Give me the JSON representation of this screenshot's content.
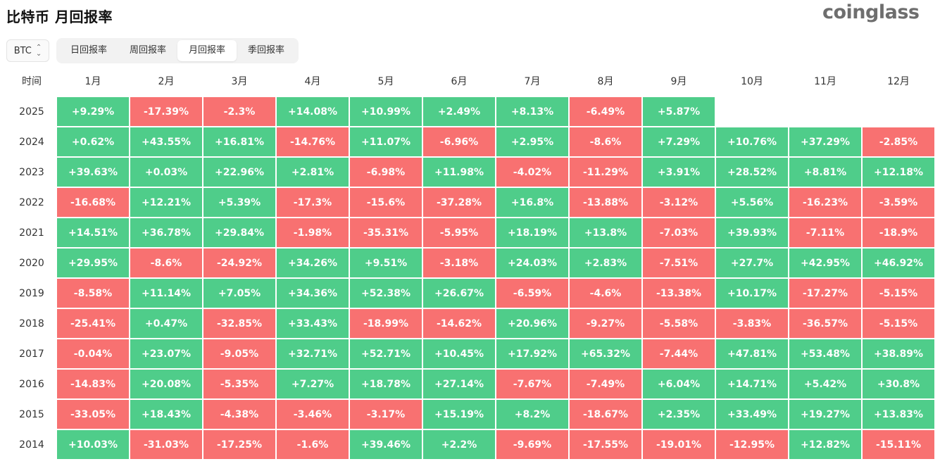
{
  "title": "比特币 月回报率",
  "brand": "coinglass",
  "asset_select": {
    "value": "BTC",
    "icon": "chevron-up-down-icon"
  },
  "tabs": [
    {
      "label": "日回报率",
      "active": false
    },
    {
      "label": "周回报率",
      "active": false
    },
    {
      "label": "月回报率",
      "active": true
    },
    {
      "label": "季回报率",
      "active": false
    }
  ],
  "colors": {
    "positive": "#4fcd8a",
    "negative": "#f87171"
  },
  "table": {
    "year_header": "时间",
    "months": [
      "1月",
      "2月",
      "3月",
      "4月",
      "5月",
      "6月",
      "7月",
      "8月",
      "9月",
      "10月",
      "11月",
      "12月"
    ],
    "rows": [
      {
        "year": "2025",
        "values": [
          "+9.29%",
          "-17.39%",
          "-2.3%",
          "+14.08%",
          "+10.99%",
          "+2.49%",
          "+8.13%",
          "-6.49%",
          "+5.87%",
          "",
          "",
          ""
        ]
      },
      {
        "year": "2024",
        "values": [
          "+0.62%",
          "+43.55%",
          "+16.81%",
          "-14.76%",
          "+11.07%",
          "-6.96%",
          "+2.95%",
          "-8.6%",
          "+7.29%",
          "+10.76%",
          "+37.29%",
          "-2.85%"
        ]
      },
      {
        "year": "2023",
        "values": [
          "+39.63%",
          "+0.03%",
          "+22.96%",
          "+2.81%",
          "-6.98%",
          "+11.98%",
          "-4.02%",
          "-11.29%",
          "+3.91%",
          "+28.52%",
          "+8.81%",
          "+12.18%"
        ]
      },
      {
        "year": "2022",
        "values": [
          "-16.68%",
          "+12.21%",
          "+5.39%",
          "-17.3%",
          "-15.6%",
          "-37.28%",
          "+16.8%",
          "-13.88%",
          "-3.12%",
          "+5.56%",
          "-16.23%",
          "-3.59%"
        ]
      },
      {
        "year": "2021",
        "values": [
          "+14.51%",
          "+36.78%",
          "+29.84%",
          "-1.98%",
          "-35.31%",
          "-5.95%",
          "+18.19%",
          "+13.8%",
          "-7.03%",
          "+39.93%",
          "-7.11%",
          "-18.9%"
        ]
      },
      {
        "year": "2020",
        "values": [
          "+29.95%",
          "-8.6%",
          "-24.92%",
          "+34.26%",
          "+9.51%",
          "-3.18%",
          "+24.03%",
          "+2.83%",
          "-7.51%",
          "+27.7%",
          "+42.95%",
          "+46.92%"
        ]
      },
      {
        "year": "2019",
        "values": [
          "-8.58%",
          "+11.14%",
          "+7.05%",
          "+34.36%",
          "+52.38%",
          "+26.67%",
          "-6.59%",
          "-4.6%",
          "-13.38%",
          "+10.17%",
          "-17.27%",
          "-5.15%"
        ]
      },
      {
        "year": "2018",
        "values": [
          "-25.41%",
          "+0.47%",
          "-32.85%",
          "+33.43%",
          "-18.99%",
          "-14.62%",
          "+20.96%",
          "-9.27%",
          "-5.58%",
          "-3.83%",
          "-36.57%",
          "-5.15%"
        ]
      },
      {
        "year": "2017",
        "values": [
          "-0.04%",
          "+23.07%",
          "-9.05%",
          "+32.71%",
          "+52.71%",
          "+10.45%",
          "+17.92%",
          "+65.32%",
          "-7.44%",
          "+47.81%",
          "+53.48%",
          "+38.89%"
        ]
      },
      {
        "year": "2016",
        "values": [
          "-14.83%",
          "+20.08%",
          "-5.35%",
          "+7.27%",
          "+18.78%",
          "+27.14%",
          "-7.67%",
          "-7.49%",
          "+6.04%",
          "+14.71%",
          "+5.42%",
          "+30.8%"
        ]
      },
      {
        "year": "2015",
        "values": [
          "-33.05%",
          "+18.43%",
          "-4.38%",
          "-3.46%",
          "-3.17%",
          "+15.19%",
          "+8.2%",
          "-18.67%",
          "+2.35%",
          "+33.49%",
          "+19.27%",
          "+13.83%"
        ]
      },
      {
        "year": "2014",
        "values": [
          "+10.03%",
          "-31.03%",
          "-17.25%",
          "-1.6%",
          "+39.46%",
          "+2.2%",
          "-9.69%",
          "-17.55%",
          "-19.01%",
          "-12.95%",
          "+12.82%",
          "-15.11%"
        ]
      }
    ]
  }
}
